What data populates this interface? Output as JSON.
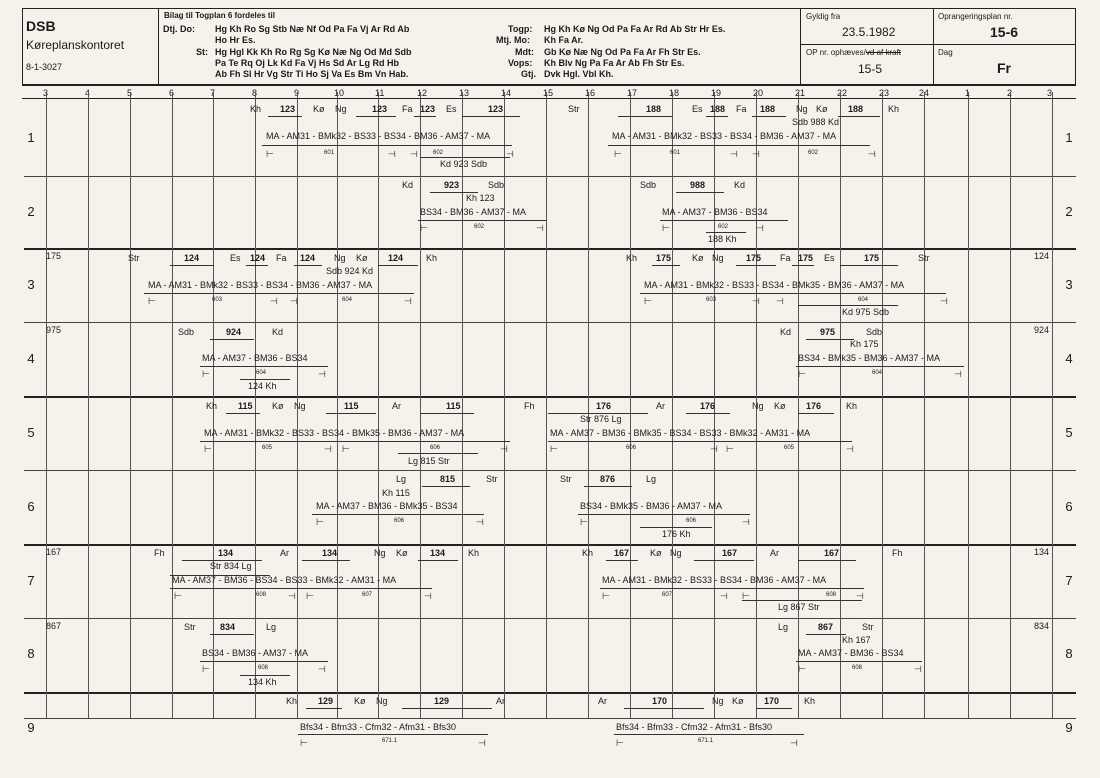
{
  "header": {
    "org": "DSB",
    "office": "Køreplanskontoret",
    "form_no": "8-1-3027",
    "bilag_title": "Bilag til Togplan 6 fordeles til",
    "dtj_label": "Dtj. Do:",
    "dtj_line1": "Hg Kh Ro Sg Stb Næ Nf Od Pa Fa Vj Ar Rd Ab",
    "dtj_line2": "Ho Hr Es.",
    "st_label": "St:",
    "st_line1": "Hg Hgl Kk Kh Ro Rg Sg Kø Næ Ng Od Md Sdb",
    "st_line2": "Pa Te Rq Oj Lk Kd Fa Vj Hs Sd Ar Lg Rd Hb",
    "st_line3": "Ab Fh Sl Hr Vg Str Ti Ho Sj Va Es Bm Vn Hab.",
    "togp_label": "Togp:",
    "togp": "Hg Kh Kø Ng Od Pa Fa Ar Rd Ab Str Hr Es.",
    "mtj_label": "Mtj. Mo:",
    "mtj": "Kh Fa Ar.",
    "mdt_label": "Mdt:",
    "mdt": "Gb Kø Næ Ng Od Pa Fa Ar Fh Str Es.",
    "vops_label": "Vops:",
    "vops": "Kh Blv Ng Pa Fa Ar Ab Fh Str Es.",
    "gtj_label": "Gtj.",
    "gtj": "Dvk Hgl. Vbl Kh.",
    "gyldig_label": "Gyldig fra",
    "gyldig_value": "23.5.1982",
    "op_label": "OP nr. ophæves/",
    "op_strike": "vd af kraft",
    "op_value": "15-5",
    "oprang_label": "Oprangeringsplan nr.",
    "oprang_value": "15-6",
    "dag_label": "Dag",
    "dag_value": "Fr"
  },
  "hours": [
    "3",
    "4",
    "5",
    "6",
    "7",
    "8",
    "9",
    "10",
    "11",
    "12",
    "13",
    "14",
    "15",
    "16",
    "17",
    "18",
    "19",
    "20",
    "21",
    "22",
    "23",
    "24",
    "1",
    "2",
    "3"
  ],
  "rows": [
    "1",
    "2",
    "3",
    "4",
    "5",
    "6",
    "7",
    "8",
    "9"
  ],
  "row_labels": {
    "r3_left": "175",
    "r3_right": "124",
    "r4_left": "975",
    "r4_right": "924",
    "r7_left": "167",
    "r7_right": "134",
    "r8_left": "867",
    "r8_right": "834"
  },
  "labels": [
    "Kh",
    "123",
    "Kø",
    "Ng",
    "123",
    "Fa",
    "123",
    "Es",
    "123",
    "Str",
    "188",
    "Es",
    "188",
    "Fa",
    "188",
    "Ng",
    "Kø",
    "188",
    "Kh",
    "Sdb 988 Kd",
    "MA - AM31 - BMk32 - BS33 - BS34 - BM36 - AM37 - MA",
    "601",
    "602",
    "601",
    "602",
    "Kd 923 Sdb",
    "MA - AM31 - BMk32 - BS33 - BS34 - BM36 - AM37 - MA",
    "Kd",
    "923",
    "Sdb",
    "Kh 123",
    "BS34 - BM36 - AM37 - MA",
    "602",
    "Sdb",
    "988",
    "Kd",
    "MA - AM37 - BM36 - BS34",
    "602",
    "188 Kh",
    "Str",
    "124",
    "Es",
    "124",
    "Fa",
    "124",
    "Ng",
    "Kø",
    "124",
    "Kh",
    "Sdb 924 Kd",
    "MA - AM31 - BMk32 - BS33 - BS34 - BM36 - AM37 - MA",
    "603",
    "604",
    "Kh",
    "175",
    "Kø",
    "Ng",
    "175",
    "Fa",
    "175",
    "Es",
    "175",
    "Str",
    "MA - AM31 - BMk32 - BS33 - BS34 - BMk35 - BM36 - AM37 - MA",
    "603",
    "604",
    "Kd 975 Sdb",
    "Sdb",
    "924",
    "Kd",
    "MA - AM37 - BM36 - BS34",
    "604",
    "124 Kh",
    "Kd",
    "975",
    "Sdb",
    "Kh 175",
    "BS34 - BMk35 - BM36 - AM37 - MA",
    "604",
    "Kh",
    "115",
    "Kø",
    "Ng",
    "115",
    "Ar",
    "115",
    "Fh",
    "MA - AM31 - BMk32 - BS33 - BS34 - BMk35 - BM36 - AM37 - MA",
    "605",
    "606",
    "Lg 815 Str",
    "176",
    "Ar",
    "176",
    "Ng",
    "Kø",
    "176",
    "Kh",
    "Str 876 Lg",
    "MA - AM37 - BM36 - BMk35 - BS34 - BS33 - BMk32 - AM31 - MA",
    "606",
    "605",
    "Lg",
    "815",
    "Str",
    "Kh 115",
    "MA - AM37 - BM36 - BMk35 - BS34",
    "606",
    "Str",
    "876",
    "Lg",
    "BS34 - BMk35 - BM36 - AM37 - MA",
    "606",
    "176 Kh",
    "Fh",
    "134",
    "Ar",
    "134",
    "Ng",
    "Kø",
    "134",
    "Kh",
    "Str 834 Lg",
    "MA - AM37 - BM36 - BS34 - BS33 - BMk32 - AM31 - MA",
    "608",
    "607",
    "Kh",
    "167",
    "Kø",
    "Ng",
    "167",
    "Ar",
    "167",
    "Fh",
    "MA - AM31 - BMk32 - BS33 - BS34 - BM36 - AM37 - MA",
    "607",
    "608",
    "Lg 867 Str",
    "Str",
    "834",
    "Lg",
    "BS34 - BM36 - AM37 - MA",
    "608",
    "134 Kh",
    "Lg",
    "867",
    "Str",
    "Kh 167",
    "MA - AM37 - BM36 - BS34",
    "608",
    "Kh",
    "129",
    "Kø",
    "Ng",
    "129",
    "Ar",
    "Bfs34 - Bfm33 - Cfm32 - Afm31 - Bfs30",
    "671.1",
    "Ar",
    "170",
    "Ng",
    "Kø",
    "170",
    "Kh",
    "Bfs34 - Bfm33 - Cfm32 - Afm31 - Bfs30",
    "671.1"
  ]
}
